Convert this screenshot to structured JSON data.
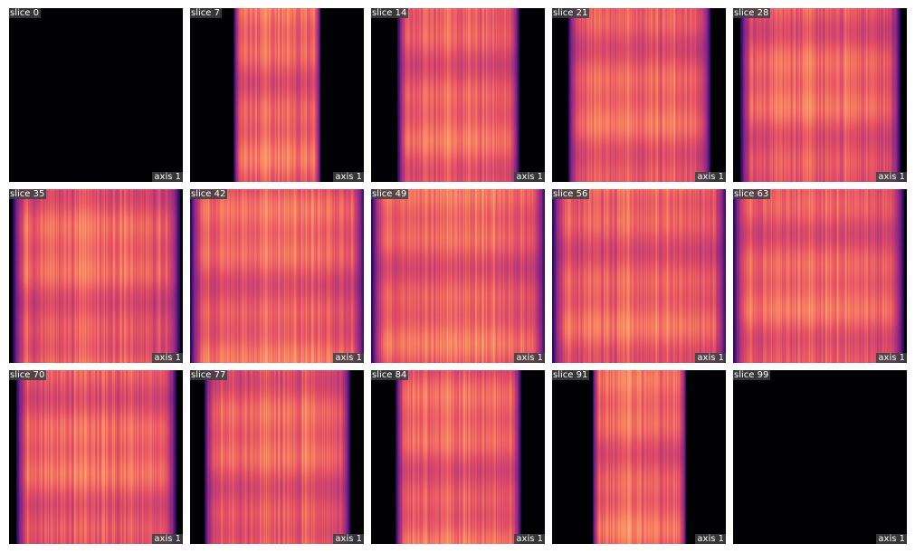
{
  "axis_label": "axis 1",
  "colormap": "magma",
  "background_color": "#000004",
  "slices": [
    {
      "label": "slice 0",
      "band": [
        0.0,
        0.0
      ]
    },
    {
      "label": "slice 7",
      "band": [
        0.25,
        0.75
      ]
    },
    {
      "label": "slice 14",
      "band": [
        0.15,
        0.85
      ]
    },
    {
      "label": "slice 21",
      "band": [
        0.09,
        0.91
      ]
    },
    {
      "label": "slice 28",
      "band": [
        0.04,
        0.96
      ]
    },
    {
      "label": "slice 35",
      "band": [
        0.02,
        0.98
      ]
    },
    {
      "label": "slice 42",
      "band": [
        0.0,
        1.0
      ]
    },
    {
      "label": "slice 49",
      "band": [
        0.0,
        1.0
      ]
    },
    {
      "label": "slice 56",
      "band": [
        0.0,
        1.0
      ]
    },
    {
      "label": "slice 63",
      "band": [
        0.0,
        0.98
      ]
    },
    {
      "label": "slice 70",
      "band": [
        0.04,
        0.96
      ]
    },
    {
      "label": "slice 77",
      "band": [
        0.08,
        0.92
      ]
    },
    {
      "label": "slice 84",
      "band": [
        0.14,
        0.86
      ]
    },
    {
      "label": "slice 91",
      "band": [
        0.23,
        0.77
      ]
    },
    {
      "label": "slice 99",
      "band": [
        0.0,
        0.0
      ]
    }
  ]
}
